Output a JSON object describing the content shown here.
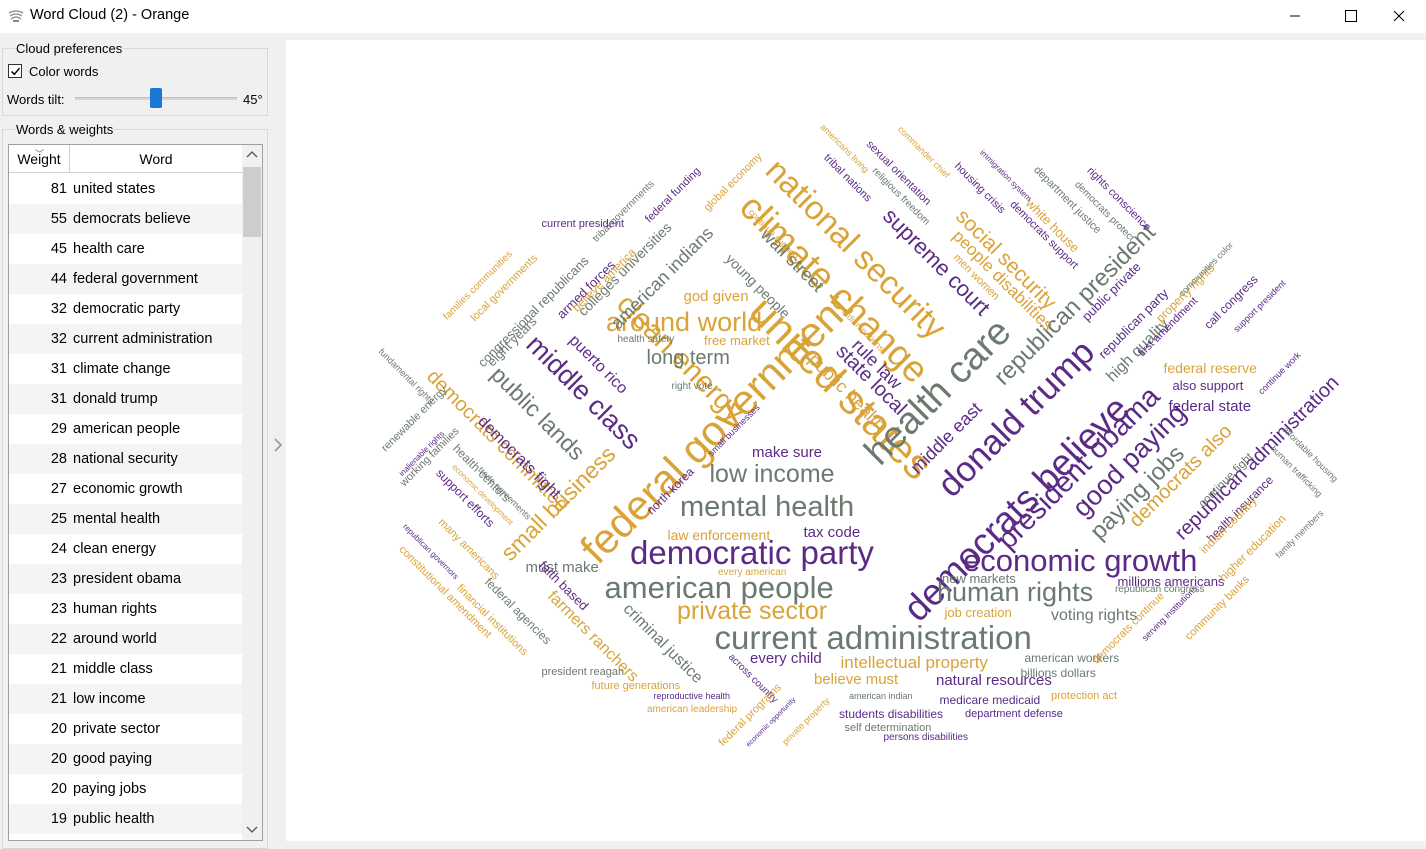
{
  "window": {
    "title": "Word Cloud (2) - Orange"
  },
  "preferences": {
    "group_title": "Cloud preferences",
    "color_words_label": "Color words",
    "color_words_checked": true,
    "words_tilt_label": "Words tilt:",
    "words_tilt_value": "45°",
    "words_tilt_level": 0.5
  },
  "words_weights": {
    "group_title": "Words & weights",
    "columns": [
      "Weight",
      "Word"
    ],
    "rows": [
      {
        "weight": "81",
        "word": "united states"
      },
      {
        "weight": "55",
        "word": "democrats believe"
      },
      {
        "weight": "45",
        "word": "health care"
      },
      {
        "weight": "44",
        "word": "federal government"
      },
      {
        "weight": "32",
        "word": "democratic party"
      },
      {
        "weight": "32",
        "word": "current administration"
      },
      {
        "weight": "31",
        "word": "climate change"
      },
      {
        "weight": "31",
        "word": "donald trump"
      },
      {
        "weight": "29",
        "word": "american people"
      },
      {
        "weight": "28",
        "word": "national security"
      },
      {
        "weight": "27",
        "word": "economic growth"
      },
      {
        "weight": "25",
        "word": "mental health"
      },
      {
        "weight": "24",
        "word": "clean energy"
      },
      {
        "weight": "23",
        "word": "president obama"
      },
      {
        "weight": "23",
        "word": "human rights"
      },
      {
        "weight": "22",
        "word": "around world"
      },
      {
        "weight": "21",
        "word": "middle class"
      },
      {
        "weight": "21",
        "word": "low income"
      },
      {
        "weight": "20",
        "word": "private sector"
      },
      {
        "weight": "20",
        "word": "good paying"
      },
      {
        "weight": "20",
        "word": "paying jobs"
      },
      {
        "weight": "19",
        "word": "public health"
      }
    ]
  },
  "colors": {
    "orange": "#d9a338",
    "purple": "#5b2a86",
    "gray": "#6b7a6f",
    "accent": "#1a78d4"
  },
  "cloud_words": [
    {
      "text": "federal government",
      "c": "orange"
    },
    {
      "text": "united states",
      "c": "orange"
    },
    {
      "text": "national security",
      "c": "orange"
    },
    {
      "text": "climate change",
      "c": "orange"
    },
    {
      "text": "health care",
      "c": "gray"
    },
    {
      "text": "democrats believe",
      "c": "purple"
    },
    {
      "text": "donald trump",
      "c": "purple"
    },
    {
      "text": "current administration",
      "c": "gray"
    },
    {
      "text": "democratic party",
      "c": "purple"
    },
    {
      "text": "american people",
      "c": "gray"
    },
    {
      "text": "economic growth",
      "c": "purple"
    },
    {
      "text": "mental health",
      "c": "gray"
    },
    {
      "text": "clean energy",
      "c": "orange"
    },
    {
      "text": "president obama",
      "c": "purple"
    },
    {
      "text": "human rights",
      "c": "gray"
    },
    {
      "text": "around world",
      "c": "orange"
    },
    {
      "text": "middle class",
      "c": "purple"
    },
    {
      "text": "low income",
      "c": "gray"
    },
    {
      "text": "private sector",
      "c": "orange"
    },
    {
      "text": "good paying",
      "c": "purple"
    },
    {
      "text": "paying jobs",
      "c": "gray"
    },
    {
      "text": "public health",
      "c": "orange"
    },
    {
      "text": "republican president",
      "c": "gray"
    },
    {
      "text": "supreme court",
      "c": "purple"
    },
    {
      "text": "public lands",
      "c": "gray"
    },
    {
      "text": "small business",
      "c": "orange"
    },
    {
      "text": "democrats committed",
      "c": "orange"
    },
    {
      "text": "social security",
      "c": "orange"
    },
    {
      "text": "democrats also",
      "c": "orange"
    },
    {
      "text": "republican administration",
      "c": "purple"
    },
    {
      "text": "intellectual property",
      "c": "orange"
    },
    {
      "text": "long term",
      "c": "gray"
    },
    {
      "text": "state local",
      "c": "purple"
    },
    {
      "text": "wall street",
      "c": "gray"
    },
    {
      "text": "american indians",
      "c": "gray"
    },
    {
      "text": "people disabilities",
      "c": "orange"
    },
    {
      "text": "high quality",
      "c": "gray"
    },
    {
      "text": "middle east",
      "c": "purple"
    },
    {
      "text": "rule law",
      "c": "purple"
    },
    {
      "text": "puerto rico",
      "c": "purple"
    },
    {
      "text": "god given",
      "c": "orange"
    },
    {
      "text": "free market",
      "c": "orange"
    },
    {
      "text": "democrats fight",
      "c": "purple"
    },
    {
      "text": "voting rights",
      "c": "gray"
    },
    {
      "text": "farmers ranchers",
      "c": "orange"
    },
    {
      "text": "criminal justice",
      "c": "gray"
    },
    {
      "text": "natural resources",
      "c": "purple"
    },
    {
      "text": "every child",
      "c": "purple"
    },
    {
      "text": "believe must",
      "c": "orange"
    },
    {
      "text": "law enforcement",
      "c": "orange"
    },
    {
      "text": "tax code",
      "c": "purple"
    },
    {
      "text": "must make",
      "c": "gray"
    },
    {
      "text": "make sure",
      "c": "purple"
    },
    {
      "text": "federal state",
      "c": "purple"
    },
    {
      "text": "federal reserve",
      "c": "orange"
    },
    {
      "text": "also support",
      "c": "purple"
    },
    {
      "text": "new markets",
      "c": "gray"
    },
    {
      "text": "job creation",
      "c": "orange"
    },
    {
      "text": "millions americans",
      "c": "purple"
    },
    {
      "text": "american workers",
      "c": "gray"
    },
    {
      "text": "billions dollars",
      "c": "gray"
    },
    {
      "text": "medicare medicaid",
      "c": "purple"
    },
    {
      "text": "protection act",
      "c": "orange"
    },
    {
      "text": "department defense",
      "c": "purple"
    },
    {
      "text": "students disabilities",
      "c": "purple"
    },
    {
      "text": "self determination",
      "c": "gray"
    },
    {
      "text": "persons disabilities",
      "c": "purple"
    },
    {
      "text": "american indian",
      "c": "gray"
    },
    {
      "text": "president reagan",
      "c": "gray"
    },
    {
      "text": "future generations",
      "c": "orange"
    },
    {
      "text": "reproductive health",
      "c": "purple"
    },
    {
      "text": "american leadership",
      "c": "orange"
    },
    {
      "text": "every american",
      "c": "orange"
    },
    {
      "text": "current president",
      "c": "purple"
    },
    {
      "text": "young people",
      "c": "gray"
    },
    {
      "text": "colleges universities",
      "c": "gray"
    },
    {
      "text": "congressional republicans",
      "c": "gray"
    },
    {
      "text": "armed forces",
      "c": "purple"
    },
    {
      "text": "believe america",
      "c": "orange"
    },
    {
      "text": "tribal governments",
      "c": "gray"
    },
    {
      "text": "federal funding",
      "c": "purple"
    },
    {
      "text": "global economy",
      "c": "orange"
    },
    {
      "text": "eight years",
      "c": "gray"
    },
    {
      "text": "local governments",
      "c": "orange"
    },
    {
      "text": "families communities",
      "c": "orange"
    },
    {
      "text": "tribal nations",
      "c": "purple"
    },
    {
      "text": "sexual orientation",
      "c": "purple"
    },
    {
      "text": "religious freedom",
      "c": "gray"
    },
    {
      "text": "housing crisis",
      "c": "purple"
    },
    {
      "text": "democrats support",
      "c": "purple"
    },
    {
      "text": "white house",
      "c": "orange"
    },
    {
      "text": "department justice",
      "c": "gray"
    },
    {
      "text": "democrats protect",
      "c": "gray"
    },
    {
      "text": "rights conscience",
      "c": "purple"
    },
    {
      "text": "men women",
      "c": "orange"
    },
    {
      "text": "republican party",
      "c": "purple"
    },
    {
      "text": "public private",
      "c": "purple"
    },
    {
      "text": "first amendment",
      "c": "purple"
    },
    {
      "text": "property rights",
      "c": "orange"
    },
    {
      "text": "call congress",
      "c": "purple"
    },
    {
      "text": "support president",
      "c": "purple"
    },
    {
      "text": "continue work",
      "c": "purple"
    },
    {
      "text": "communities color",
      "c": "gray"
    },
    {
      "text": "affordable housing",
      "c": "gray"
    },
    {
      "text": "human trafficking",
      "c": "gray"
    },
    {
      "text": "health insurance",
      "c": "purple"
    },
    {
      "text": "continue fight",
      "c": "gray"
    },
    {
      "text": "indian country",
      "c": "orange"
    },
    {
      "text": "higher education",
      "c": "orange"
    },
    {
      "text": "family members",
      "c": "gray"
    },
    {
      "text": "community banks",
      "c": "orange"
    },
    {
      "text": "serving institutions",
      "c": "purple"
    },
    {
      "text": "democrats continue",
      "c": "orange"
    },
    {
      "text": "republican congress",
      "c": "gray"
    },
    {
      "text": "renewable energy",
      "c": "gray"
    },
    {
      "text": "working families",
      "c": "gray"
    },
    {
      "text": "support efforts",
      "c": "purple"
    },
    {
      "text": "health centers",
      "c": "gray"
    },
    {
      "text": "many americans",
      "c": "orange"
    },
    {
      "text": "federal agencies",
      "c": "gray"
    },
    {
      "text": "faith based",
      "c": "purple"
    },
    {
      "text": "financial institutions",
      "c": "orange"
    },
    {
      "text": "constitutional amendment",
      "c": "orange"
    },
    {
      "text": "north korea",
      "c": "purple"
    },
    {
      "text": "health safety",
      "c": "gray"
    },
    {
      "text": "right vote",
      "c": "gray"
    },
    {
      "text": "small businesses",
      "c": "purple"
    },
    {
      "text": "across country",
      "c": "purple"
    },
    {
      "text": "federal programs",
      "c": "orange"
    },
    {
      "text": "private property",
      "c": "orange"
    },
    {
      "text": "economic opportunity",
      "c": "purple"
    },
    {
      "text": "fundamental rights",
      "c": "gray"
    },
    {
      "text": "inalienable rights",
      "c": "purple"
    },
    {
      "text": "trade agreements",
      "c": "gray"
    },
    {
      "text": "economic development",
      "c": "orange"
    },
    {
      "text": "republican governors",
      "c": "purple"
    },
    {
      "text": "americans living",
      "c": "orange"
    },
    {
      "text": "commander chief",
      "c": "orange"
    },
    {
      "text": "immigration system",
      "c": "purple"
    },
    {
      "text": "continue support",
      "c": "orange"
    },
    {
      "text": "indian nations",
      "c": "orange"
    }
  ]
}
